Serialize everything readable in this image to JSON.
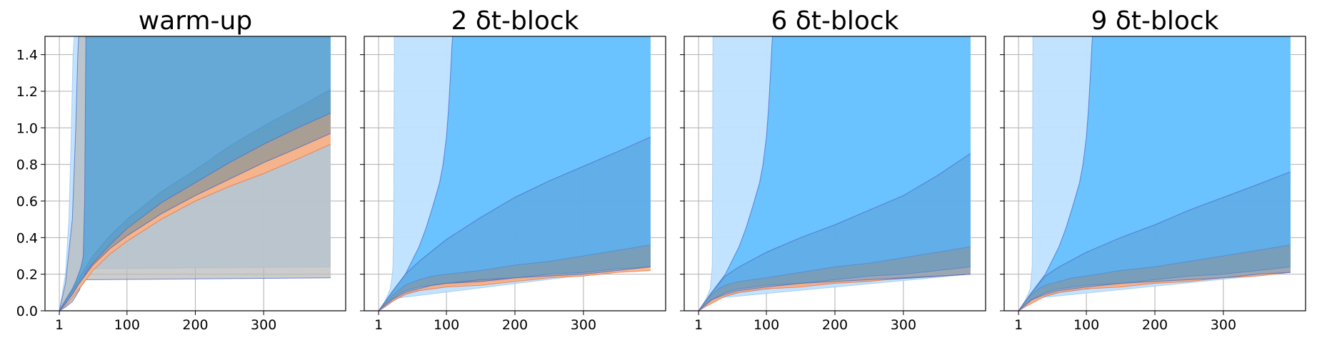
{
  "chart_data": [
    {
      "type": "area",
      "title": "warm-up",
      "xlabel": "",
      "ylabel": "",
      "xlim": [
        -20,
        420
      ],
      "ylim": [
        0,
        1.5
      ],
      "xticks": [
        1,
        100,
        200,
        300
      ],
      "yticks": [
        0.0,
        0.2,
        0.4,
        0.6,
        0.8,
        1.0,
        1.2,
        1.4
      ],
      "grid": true,
      "legend": null,
      "series": [
        {
          "name": "",
          "color": "#bfe2ff",
          "opacity": 0.95,
          "x": [
            1,
            10,
            15,
            18,
            21,
            24,
            26,
            28,
            30,
            33,
            35,
            36,
            38,
            40,
            398
          ],
          "lower": [
            0.0,
            0.02,
            0.04,
            0.06,
            0.08,
            0.1,
            0.12,
            0.14,
            0.16,
            0.18,
            0.2,
            0.21,
            0.22,
            0.23,
            0.24
          ],
          "upper": [
            0.0,
            0.2,
            0.5,
            0.9,
            1.4,
            1.55,
            1.55,
            1.55,
            1.55,
            1.55,
            1.55,
            1.55,
            1.55,
            1.55,
            1.55
          ]
        },
        {
          "name": "",
          "color": "#b8b8b8",
          "opacity": 0.7,
          "x": [
            1,
            10,
            20,
            25,
            28,
            30,
            31,
            32,
            34,
            36,
            38,
            40,
            398
          ],
          "lower": [
            0.0,
            0.02,
            0.05,
            0.08,
            0.1,
            0.11,
            0.12,
            0.13,
            0.14,
            0.15,
            0.16,
            0.17,
            0.18
          ],
          "upper": [
            0.0,
            0.15,
            0.5,
            1.0,
            1.4,
            1.55,
            1.55,
            1.55,
            1.55,
            1.55,
            1.55,
            1.55,
            1.55
          ]
        },
        {
          "name": "",
          "color": "#ffb07f",
          "opacity": 0.85,
          "x": [
            1,
            10,
            20,
            30,
            40,
            50,
            75,
            100,
            150,
            200,
            250,
            300,
            350,
            398
          ],
          "lower": [
            0.0,
            0.03,
            0.07,
            0.12,
            0.17,
            0.22,
            0.31,
            0.38,
            0.5,
            0.6,
            0.68,
            0.75,
            0.83,
            0.91
          ],
          "upper": [
            0.0,
            0.04,
            0.09,
            0.15,
            0.2,
            0.25,
            0.34,
            0.41,
            0.53,
            0.63,
            0.72,
            0.81,
            0.89,
            0.97
          ]
        },
        {
          "name": "",
          "color": "#a7998e",
          "opacity": 0.9,
          "x": [
            1,
            10,
            20,
            30,
            40,
            50,
            75,
            100,
            150,
            200,
            250,
            300,
            350,
            398
          ],
          "lower": [
            0.0,
            0.04,
            0.09,
            0.15,
            0.2,
            0.25,
            0.34,
            0.41,
            0.53,
            0.63,
            0.72,
            0.81,
            0.89,
            0.97
          ],
          "upper": [
            0.0,
            0.05,
            0.11,
            0.18,
            0.24,
            0.3,
            0.41,
            0.5,
            0.65,
            0.77,
            0.9,
            1.01,
            1.11,
            1.21
          ]
        },
        {
          "name": "",
          "color": "#4a9fd8",
          "opacity": 0.75,
          "x": [
            1,
            10,
            20,
            25,
            28,
            30,
            32,
            34,
            36,
            38,
            40,
            50,
            75,
            100,
            150,
            200,
            250,
            300,
            350,
            398
          ],
          "lower": [
            0.0,
            0.04,
            0.09,
            0.12,
            0.14,
            0.15,
            0.16,
            0.17,
            0.18,
            0.19,
            0.21,
            0.26,
            0.36,
            0.45,
            0.59,
            0.7,
            0.81,
            0.91,
            1.0,
            1.08
          ],
          "upper": [
            0.0,
            0.06,
            0.12,
            0.16,
            0.19,
            0.21,
            0.23,
            0.26,
            0.3,
            0.6,
            1.55,
            1.55,
            1.55,
            1.55,
            1.55,
            1.55,
            1.55,
            1.55,
            1.55,
            1.55
          ]
        }
      ]
    },
    {
      "type": "area",
      "title": "2 δt-block",
      "xlabel": "",
      "ylabel": "",
      "xlim": [
        -20,
        420
      ],
      "ylim": [
        0,
        1.5
      ],
      "xticks": [
        1,
        100,
        200,
        300
      ],
      "yticks": [
        0.0,
        0.2,
        0.4,
        0.6,
        0.8,
        1.0,
        1.2,
        1.4
      ],
      "grid": true,
      "legend": null,
      "series": [
        {
          "name": "",
          "color": "#bfe2ff",
          "opacity": 0.95,
          "x": [
            1,
            10,
            18,
            21,
            22,
            23,
            24,
            30,
            398
          ],
          "lower": [
            0.0,
            0.02,
            0.04,
            0.05,
            0.05,
            0.06,
            0.06,
            0.07,
            0.24
          ],
          "upper": [
            0.0,
            0.05,
            0.12,
            0.2,
            0.25,
            0.5,
            1.55,
            1.55,
            1.55
          ]
        },
        {
          "name": "",
          "color": "#5bbcff",
          "opacity": 0.85,
          "x": [
            1,
            20,
            40,
            60,
            70,
            80,
            90,
            95,
            100,
            103,
            106,
            108,
            110,
            398
          ],
          "lower": [
            0.0,
            0.05,
            0.09,
            0.11,
            0.12,
            0.125,
            0.13,
            0.13,
            0.135,
            0.135,
            0.14,
            0.14,
            0.14,
            0.24
          ],
          "upper": [
            0.0,
            0.1,
            0.2,
            0.35,
            0.45,
            0.57,
            0.7,
            0.8,
            0.95,
            1.1,
            1.3,
            1.45,
            1.55,
            1.55
          ]
        },
        {
          "name": "",
          "color": "#ffb07f",
          "opacity": 0.9,
          "x": [
            1,
            10,
            20,
            30,
            40,
            60,
            80,
            100,
            150,
            200,
            250,
            300,
            350,
            398
          ],
          "lower": [
            0.0,
            0.02,
            0.05,
            0.07,
            0.09,
            0.11,
            0.12,
            0.13,
            0.14,
            0.16,
            0.18,
            0.19,
            0.21,
            0.22
          ],
          "upper": [
            0.0,
            0.03,
            0.06,
            0.09,
            0.11,
            0.13,
            0.14,
            0.15,
            0.16,
            0.18,
            0.2,
            0.21,
            0.23,
            0.24
          ]
        },
        {
          "name": "",
          "color": "#a7998e",
          "opacity": 0.9,
          "x": [
            1,
            10,
            20,
            30,
            40,
            60,
            80,
            100,
            150,
            200,
            250,
            300,
            350,
            398
          ],
          "lower": [
            0.0,
            0.03,
            0.06,
            0.09,
            0.11,
            0.13,
            0.14,
            0.15,
            0.16,
            0.18,
            0.2,
            0.21,
            0.23,
            0.24
          ],
          "upper": [
            0.0,
            0.04,
            0.08,
            0.11,
            0.14,
            0.17,
            0.19,
            0.2,
            0.22,
            0.25,
            0.27,
            0.3,
            0.33,
            0.36
          ]
        },
        {
          "name": "",
          "color": "#5a9fd6",
          "opacity": 0.55,
          "x": [
            1,
            20,
            40,
            60,
            80,
            100,
            150,
            200,
            250,
            300,
            350,
            398
          ],
          "lower": [
            0.0,
            0.06,
            0.1,
            0.12,
            0.14,
            0.15,
            0.17,
            0.18,
            0.19,
            0.2,
            0.22,
            0.24
          ],
          "upper": [
            0.0,
            0.1,
            0.2,
            0.27,
            0.33,
            0.39,
            0.51,
            0.62,
            0.71,
            0.79,
            0.87,
            0.95
          ]
        }
      ]
    },
    {
      "type": "area",
      "title": "6 δt-block",
      "xlabel": "",
      "ylabel": "",
      "xlim": [
        -20,
        420
      ],
      "ylim": [
        0,
        1.5
      ],
      "xticks": [
        1,
        100,
        200,
        300
      ],
      "yticks": [
        0.0,
        0.2,
        0.4,
        0.6,
        0.8,
        1.0,
        1.2,
        1.4
      ],
      "grid": true,
      "legend": null,
      "series": [
        {
          "name": "",
          "color": "#bfe2ff",
          "opacity": 0.95,
          "x": [
            1,
            10,
            18,
            20,
            21,
            22,
            30,
            398
          ],
          "lower": [
            0.0,
            0.02,
            0.04,
            0.05,
            0.05,
            0.05,
            0.07,
            0.2
          ],
          "upper": [
            0.0,
            0.05,
            0.12,
            0.2,
            0.25,
            1.55,
            1.55,
            1.55
          ]
        },
        {
          "name": "",
          "color": "#5bbcff",
          "opacity": 0.85,
          "x": [
            1,
            20,
            40,
            60,
            70,
            80,
            90,
            95,
            100,
            103,
            106,
            108,
            110,
            398
          ],
          "lower": [
            0.0,
            0.05,
            0.08,
            0.1,
            0.105,
            0.11,
            0.115,
            0.12,
            0.12,
            0.12,
            0.125,
            0.125,
            0.13,
            0.2
          ],
          "upper": [
            0.0,
            0.1,
            0.2,
            0.35,
            0.45,
            0.57,
            0.7,
            0.8,
            0.95,
            1.1,
            1.3,
            1.45,
            1.55,
            1.55
          ]
        },
        {
          "name": "",
          "color": "#ffb07f",
          "opacity": 0.9,
          "x": [
            1,
            10,
            20,
            30,
            40,
            60,
            80,
            100,
            150,
            200,
            250,
            300,
            350,
            398
          ],
          "lower": [
            0.0,
            0.02,
            0.04,
            0.06,
            0.08,
            0.1,
            0.11,
            0.12,
            0.13,
            0.15,
            0.16,
            0.18,
            0.19,
            0.2
          ],
          "upper": [
            0.0,
            0.03,
            0.06,
            0.08,
            0.1,
            0.12,
            0.13,
            0.14,
            0.15,
            0.17,
            0.19,
            0.2,
            0.22,
            0.24
          ]
        },
        {
          "name": "",
          "color": "#a7998e",
          "opacity": 0.9,
          "x": [
            1,
            10,
            20,
            30,
            40,
            60,
            80,
            100,
            150,
            200,
            250,
            300,
            350,
            398
          ],
          "lower": [
            0.0,
            0.03,
            0.06,
            0.08,
            0.1,
            0.12,
            0.13,
            0.14,
            0.15,
            0.17,
            0.19,
            0.2,
            0.22,
            0.24
          ],
          "upper": [
            0.0,
            0.05,
            0.09,
            0.12,
            0.14,
            0.16,
            0.17,
            0.18,
            0.21,
            0.24,
            0.26,
            0.29,
            0.32,
            0.35
          ]
        },
        {
          "name": "",
          "color": "#5a9fd6",
          "opacity": 0.55,
          "x": [
            1,
            20,
            40,
            60,
            80,
            100,
            150,
            200,
            250,
            300,
            350,
            398
          ],
          "lower": [
            0.0,
            0.06,
            0.09,
            0.11,
            0.12,
            0.13,
            0.15,
            0.16,
            0.17,
            0.18,
            0.19,
            0.2
          ],
          "upper": [
            0.0,
            0.1,
            0.19,
            0.24,
            0.28,
            0.32,
            0.4,
            0.47,
            0.55,
            0.63,
            0.74,
            0.86
          ]
        }
      ]
    },
    {
      "type": "area",
      "title": "9 δt-block",
      "xlabel": "",
      "ylabel": "",
      "xlim": [
        -20,
        420
      ],
      "ylim": [
        0,
        1.5
      ],
      "xticks": [
        1,
        100,
        200,
        300
      ],
      "yticks": [
        0.0,
        0.2,
        0.4,
        0.6,
        0.8,
        1.0,
        1.2,
        1.4
      ],
      "grid": true,
      "legend": null,
      "series": [
        {
          "name": "",
          "color": "#bfe2ff",
          "opacity": 0.95,
          "x": [
            1,
            10,
            18,
            20,
            21,
            22,
            30,
            398
          ],
          "lower": [
            0.0,
            0.02,
            0.04,
            0.05,
            0.05,
            0.05,
            0.07,
            0.21
          ],
          "upper": [
            0.0,
            0.05,
            0.12,
            0.2,
            0.25,
            1.55,
            1.55,
            1.55
          ]
        },
        {
          "name": "",
          "color": "#5bbcff",
          "opacity": 0.85,
          "x": [
            1,
            20,
            40,
            60,
            70,
            80,
            90,
            95,
            100,
            103,
            106,
            108,
            110,
            398
          ],
          "lower": [
            0.0,
            0.05,
            0.08,
            0.1,
            0.105,
            0.11,
            0.115,
            0.12,
            0.12,
            0.12,
            0.125,
            0.125,
            0.13,
            0.21
          ],
          "upper": [
            0.0,
            0.1,
            0.2,
            0.35,
            0.45,
            0.57,
            0.7,
            0.8,
            0.95,
            1.1,
            1.3,
            1.45,
            1.55,
            1.55
          ]
        },
        {
          "name": "",
          "color": "#ffb07f",
          "opacity": 0.9,
          "x": [
            1,
            10,
            20,
            30,
            40,
            60,
            80,
            100,
            150,
            200,
            250,
            300,
            350,
            398
          ],
          "lower": [
            0.0,
            0.02,
            0.04,
            0.06,
            0.08,
            0.1,
            0.11,
            0.12,
            0.13,
            0.15,
            0.16,
            0.18,
            0.19,
            0.21
          ],
          "upper": [
            0.0,
            0.03,
            0.06,
            0.08,
            0.1,
            0.12,
            0.13,
            0.14,
            0.15,
            0.17,
            0.19,
            0.2,
            0.22,
            0.24
          ]
        },
        {
          "name": "",
          "color": "#a7998e",
          "opacity": 0.9,
          "x": [
            1,
            10,
            20,
            30,
            40,
            60,
            80,
            100,
            150,
            200,
            250,
            300,
            350,
            398
          ],
          "lower": [
            0.0,
            0.03,
            0.06,
            0.08,
            0.1,
            0.12,
            0.13,
            0.14,
            0.15,
            0.17,
            0.19,
            0.2,
            0.22,
            0.24
          ],
          "upper": [
            0.0,
            0.05,
            0.09,
            0.12,
            0.14,
            0.16,
            0.18,
            0.19,
            0.22,
            0.24,
            0.27,
            0.3,
            0.33,
            0.36
          ]
        },
        {
          "name": "",
          "color": "#5a9fd6",
          "opacity": 0.55,
          "x": [
            1,
            20,
            40,
            60,
            80,
            100,
            150,
            200,
            250,
            300,
            350,
            398
          ],
          "lower": [
            0.0,
            0.06,
            0.09,
            0.11,
            0.12,
            0.13,
            0.15,
            0.16,
            0.17,
            0.18,
            0.2,
            0.21
          ],
          "upper": [
            0.0,
            0.1,
            0.19,
            0.24,
            0.28,
            0.32,
            0.4,
            0.47,
            0.55,
            0.62,
            0.69,
            0.76
          ]
        }
      ]
    }
  ]
}
